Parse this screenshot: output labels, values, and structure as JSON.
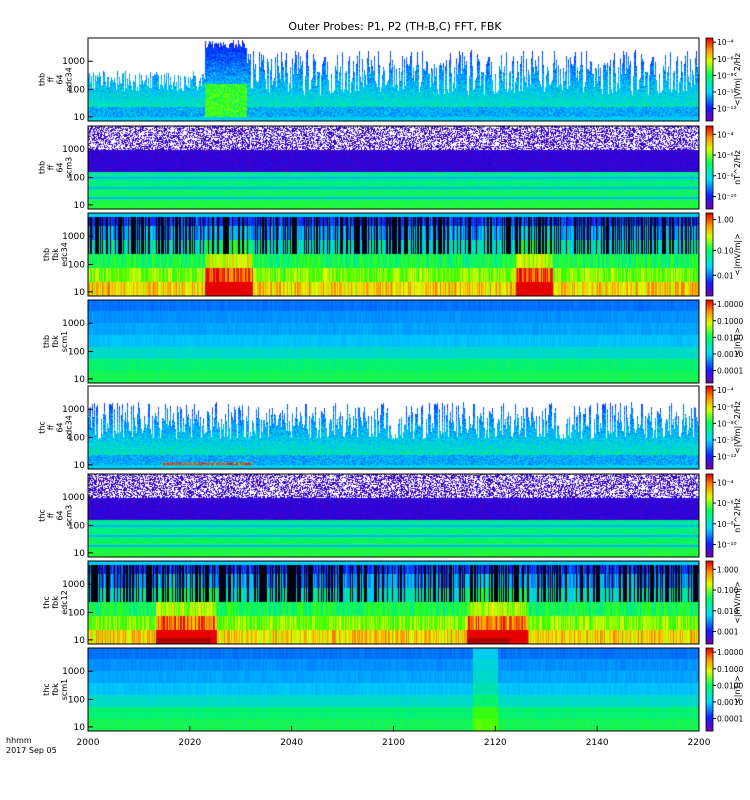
{
  "chart_data": {
    "type": "heatmap",
    "title": "Outer Probes: P1, P2 (TH-B,C) FFT, FBK",
    "xaxis": {
      "range": [
        2000,
        2200
      ],
      "ticks": [
        "2000",
        "2020",
        "2040",
        "2100",
        "2120",
        "2140",
        "2200"
      ],
      "label_line1": "hhmm",
      "label_line2": "2017 Sep 05"
    },
    "panels": [
      {
        "id": "thb-ff-edc34",
        "ylabel": [
          "thb",
          "ff",
          "64",
          "edc34"
        ],
        "yticks": [
          "10",
          "100",
          "1000"
        ],
        "colorbar": {
          "label": "<|V/m|^2/Hz",
          "ticks": [
            "10⁻¹²",
            "10⁻¹⁰",
            "10⁻⁸",
            "10⁻⁶",
            "10⁻⁴"
          ]
        }
      },
      {
        "id": "thb-ff-scm3",
        "ylabel": [
          "thb",
          "ff",
          "64",
          "scm3"
        ],
        "yticks": [
          "10",
          "100",
          "1000"
        ],
        "colorbar": {
          "label": "nT^2/Hz",
          "ticks": [
            "10⁻¹⁰",
            "10⁻⁸",
            "10⁻⁶",
            "10⁻⁴"
          ]
        }
      },
      {
        "id": "thb-fbk-edc34",
        "ylabel": [
          "thb",
          "fbk",
          "edc34"
        ],
        "yticks": [
          "10",
          "100",
          "1000"
        ],
        "colorbar": {
          "label": "<|mV/m|>",
          "ticks": [
            "0.01",
            "0.10",
            "1.00"
          ]
        }
      },
      {
        "id": "thb-fbk-scm1",
        "ylabel": [
          "thb",
          "fbk",
          "scm1"
        ],
        "yticks": [
          "10",
          "100",
          "1000"
        ],
        "colorbar": {
          "label": "<|nT|>",
          "ticks": [
            "0.0001",
            "0.0010",
            "0.0100",
            "0.1000",
            "1.0000"
          ]
        }
      },
      {
        "id": "thc-ff-edc34",
        "ylabel": [
          "thc",
          "ff",
          "64",
          "edc34"
        ],
        "yticks": [
          "10",
          "100",
          "1000"
        ],
        "colorbar": {
          "label": "<|V/m|^2/Hz",
          "ticks": [
            "10⁻¹²",
            "10⁻¹⁰",
            "10⁻⁸",
            "10⁻⁶",
            "10⁻⁴"
          ]
        }
      },
      {
        "id": "thc-ff-scm3",
        "ylabel": [
          "thc",
          "ff",
          "64",
          "scm3"
        ],
        "yticks": [
          "10",
          "100",
          "1000"
        ],
        "colorbar": {
          "label": "nT^2/Hz",
          "ticks": [
            "10⁻¹⁰",
            "10⁻⁸",
            "10⁻⁶",
            "10⁻⁴"
          ]
        }
      },
      {
        "id": "thc-fbk-edc12",
        "ylabel": [
          "thc",
          "fbk",
          "edc12"
        ],
        "yticks": [
          "10",
          "100",
          "1000"
        ],
        "colorbar": {
          "label": "<|mV/m|>",
          "ticks": [
            "0.001",
            "0.010",
            "0.100",
            "1.000"
          ]
        }
      },
      {
        "id": "thc-fbk-scm1",
        "ylabel": [
          "thc",
          "fbk",
          "scm1"
        ],
        "yticks": [
          "10",
          "100",
          "1000"
        ],
        "colorbar": {
          "label": "<|nT|>",
          "ticks": [
            "0.0001",
            "0.0010",
            "0.0100",
            "0.1000",
            "1.0000"
          ]
        }
      }
    ]
  }
}
